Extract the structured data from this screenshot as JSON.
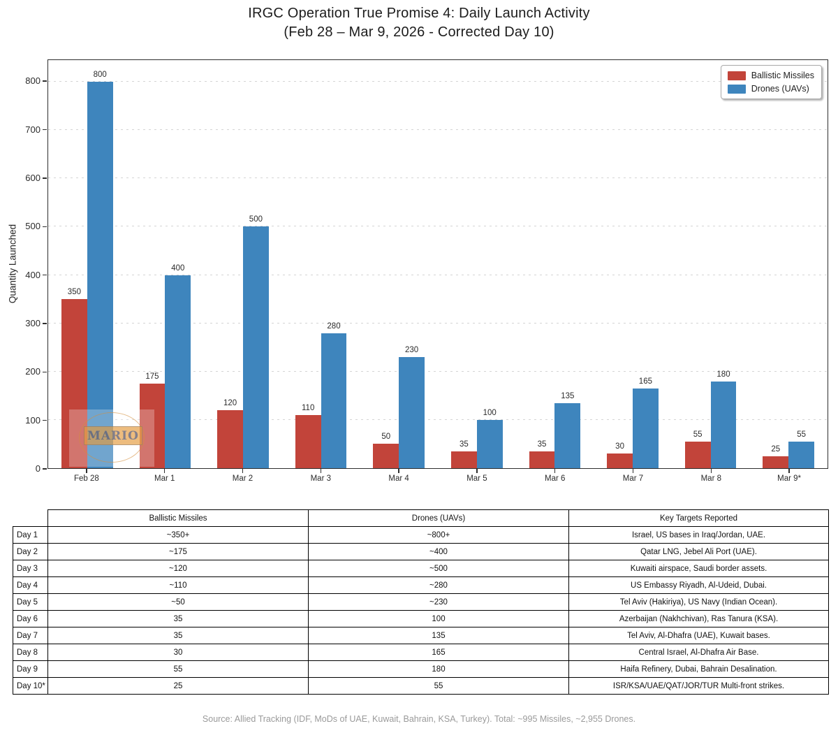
{
  "title": {
    "line1": "IRGC Operation True Promise 4: Daily Launch Activity",
    "line2": "(Feb 28 – Mar 9, 2026 - Corrected Day 10)"
  },
  "chart_data": {
    "type": "bar",
    "title": "IRGC Operation True Promise 4: Daily Launch Activity (Feb 28 – Mar 9, 2026 - Corrected Day 10)",
    "categories": [
      "Feb 28",
      "Mar 1",
      "Mar 2",
      "Mar 3",
      "Mar 4",
      "Mar 5",
      "Mar 6",
      "Mar 7",
      "Mar 8",
      "Mar 9*"
    ],
    "series": [
      {
        "name": "Ballistic Missiles",
        "color": "#c2443a",
        "values": [
          350,
          175,
          120,
          110,
          50,
          35,
          35,
          30,
          55,
          25
        ]
      },
      {
        "name": "Drones (UAVs)",
        "color": "#3e85bd",
        "values": [
          800,
          400,
          500,
          280,
          230,
          100,
          135,
          165,
          180,
          55
        ]
      }
    ],
    "xlabel": "",
    "ylabel": "Quantity Launched",
    "ylim": [
      0,
      845
    ],
    "yticks": [
      0,
      100,
      200,
      300,
      400,
      500,
      600,
      700,
      800
    ],
    "grid": "horizontal-dashed",
    "legend_position": "top-right",
    "bar_labels": true
  },
  "watermark": {
    "text": "MARIO"
  },
  "table": {
    "headers": [
      "",
      "Ballistic Missiles",
      "Drones (UAVs)",
      "Key Targets Reported"
    ],
    "rows": [
      {
        "label": "Day 1",
        "ballistic": "~350+",
        "drones": "~800+",
        "targets": "Israel, US bases in Iraq/Jordan, UAE."
      },
      {
        "label": "Day 2",
        "ballistic": "~175",
        "drones": "~400",
        "targets": "Qatar LNG, Jebel Ali Port (UAE)."
      },
      {
        "label": "Day 3",
        "ballistic": "~120",
        "drones": "~500",
        "targets": "Kuwaiti airspace, Saudi border assets."
      },
      {
        "label": "Day 4",
        "ballistic": "~110",
        "drones": "~280",
        "targets": "US Embassy Riyadh, Al-Udeid, Dubai."
      },
      {
        "label": "Day 5",
        "ballistic": "~50",
        "drones": "~230",
        "targets": "Tel Aviv (Hakiriya), US Navy (Indian Ocean)."
      },
      {
        "label": "Day 6",
        "ballistic": "35",
        "drones": "100",
        "targets": "Azerbaijan (Nakhchivan), Ras Tanura (KSA)."
      },
      {
        "label": "Day 7",
        "ballistic": "35",
        "drones": "135",
        "targets": "Tel Aviv, Al-Dhafra (UAE), Kuwait bases."
      },
      {
        "label": "Day 8",
        "ballistic": "30",
        "drones": "165",
        "targets": "Central Israel, Al-Dhafra Air Base."
      },
      {
        "label": "Day 9",
        "ballistic": "55",
        "drones": "180",
        "targets": "Haifa Refinery, Dubai, Bahrain Desalination."
      },
      {
        "label": "Day 10*",
        "ballistic": "25",
        "drones": "55",
        "targets": "ISR/KSA/UAE/QAT/JOR/TUR Multi-front strikes."
      }
    ]
  },
  "footer": {
    "source": "Source: Allied Tracking (IDF, MoDs of UAE, Kuwait, Bahrain, KSA, Turkey). Total: ~995 Missiles, ~2,955 Drones."
  }
}
